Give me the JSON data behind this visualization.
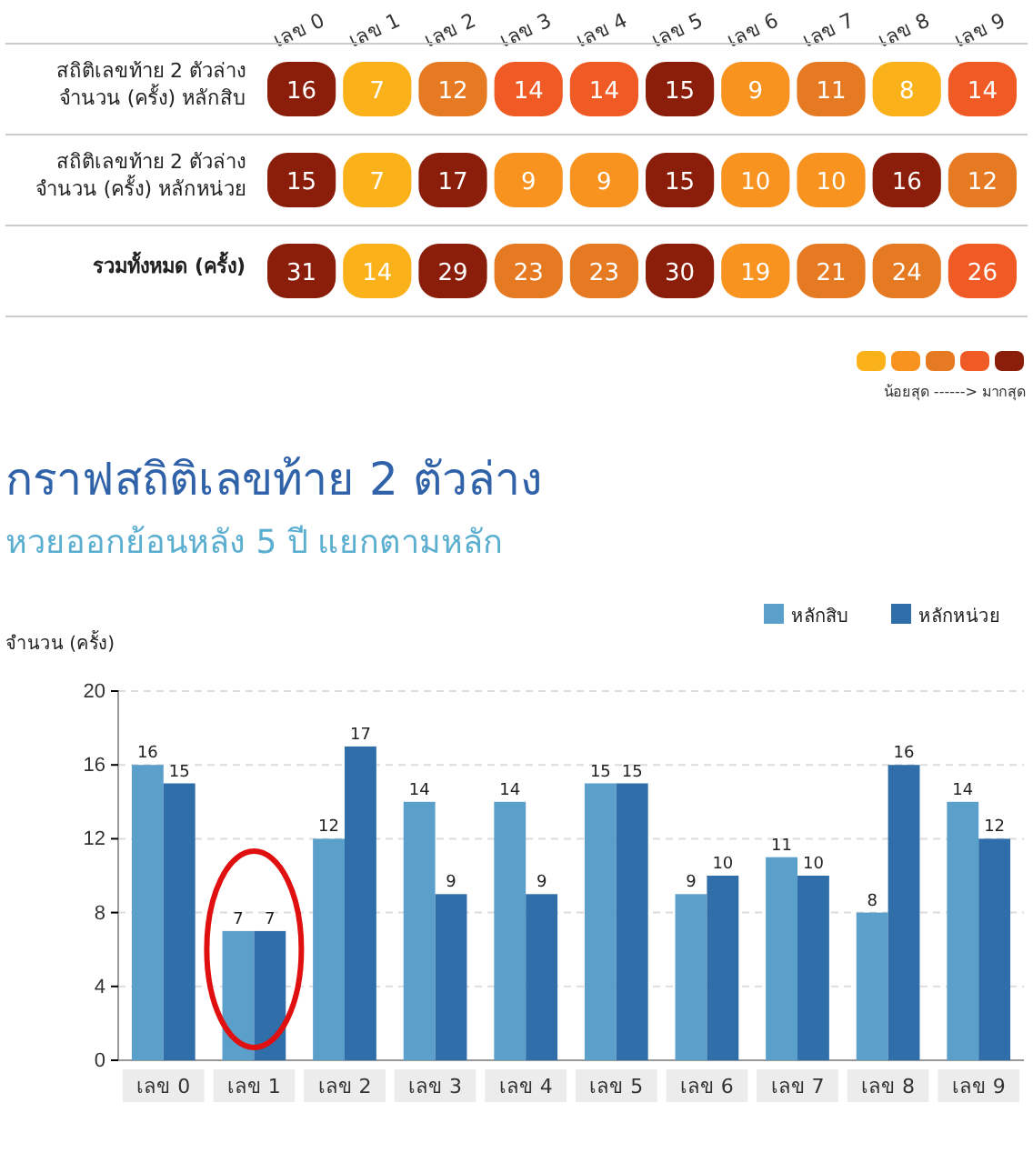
{
  "chart_data": [
    {
      "type": "heatmap",
      "categories": [
        "เลข 0",
        "เลข 1",
        "เลข 2",
        "เลข 3",
        "เลข 4",
        "เลข 5",
        "เลข 6",
        "เลข 7",
        "เลข 8",
        "เลข 9"
      ],
      "y_categories": [
        "สถิติเลขท้าย 2 ตัวล่าง\nจำนวน (ครั้ง) หลักสิบ",
        "สถิติเลขท้าย 2 ตัวล่าง\nจำนวน (ครั้ง) หลักหน่วย",
        "รวมทั้งหมด (ครั้ง)"
      ],
      "cells": [
        [
          16,
          7,
          12,
          14,
          14,
          15,
          9,
          11,
          8,
          14
        ],
        [
          15,
          7,
          17,
          9,
          9,
          15,
          10,
          10,
          16,
          12
        ],
        [
          31,
          14,
          29,
          23,
          23,
          30,
          19,
          21,
          24,
          26
        ]
      ],
      "colors": [
        "#fbb11a",
        "#f7931e",
        "#e57a22",
        "#f05a24",
        "#8b1e0a"
      ],
      "data_labels": true,
      "annotations": [
        "น้อยสุด ------> มากสุด"
      ]
    },
    {
      "type": "bar",
      "title": "กราฟสถิติเลขท้าย 2 ตัวล่าง",
      "subtitle": "หวยออกย้อนหลัง 5 ปี แยกตามหลัก",
      "ylabel": "จำนวน (ครั้ง)",
      "categories": [
        "เลข 0",
        "เลข 1",
        "เลข 2",
        "เลข 3",
        "เลข 4",
        "เลข 5",
        "เลข 6",
        "เลข 7",
        "เลข 8",
        "เลข 9"
      ],
      "series": [
        {
          "name": "หลักสิบ",
          "color": "#5b9fcb",
          "values": [
            16,
            7,
            12,
            14,
            14,
            15,
            9,
            11,
            8,
            14
          ]
        },
        {
          "name": "หลักหน่วย",
          "color": "#2f6ea9",
          "values": [
            15,
            7,
            17,
            9,
            9,
            15,
            10,
            10,
            16,
            12
          ]
        }
      ],
      "ylim": [
        0,
        20
      ],
      "yticks": [
        0,
        4,
        8,
        12,
        16,
        20
      ],
      "grid": "y",
      "legend": "top right",
      "data_labels": true
    }
  ]
}
